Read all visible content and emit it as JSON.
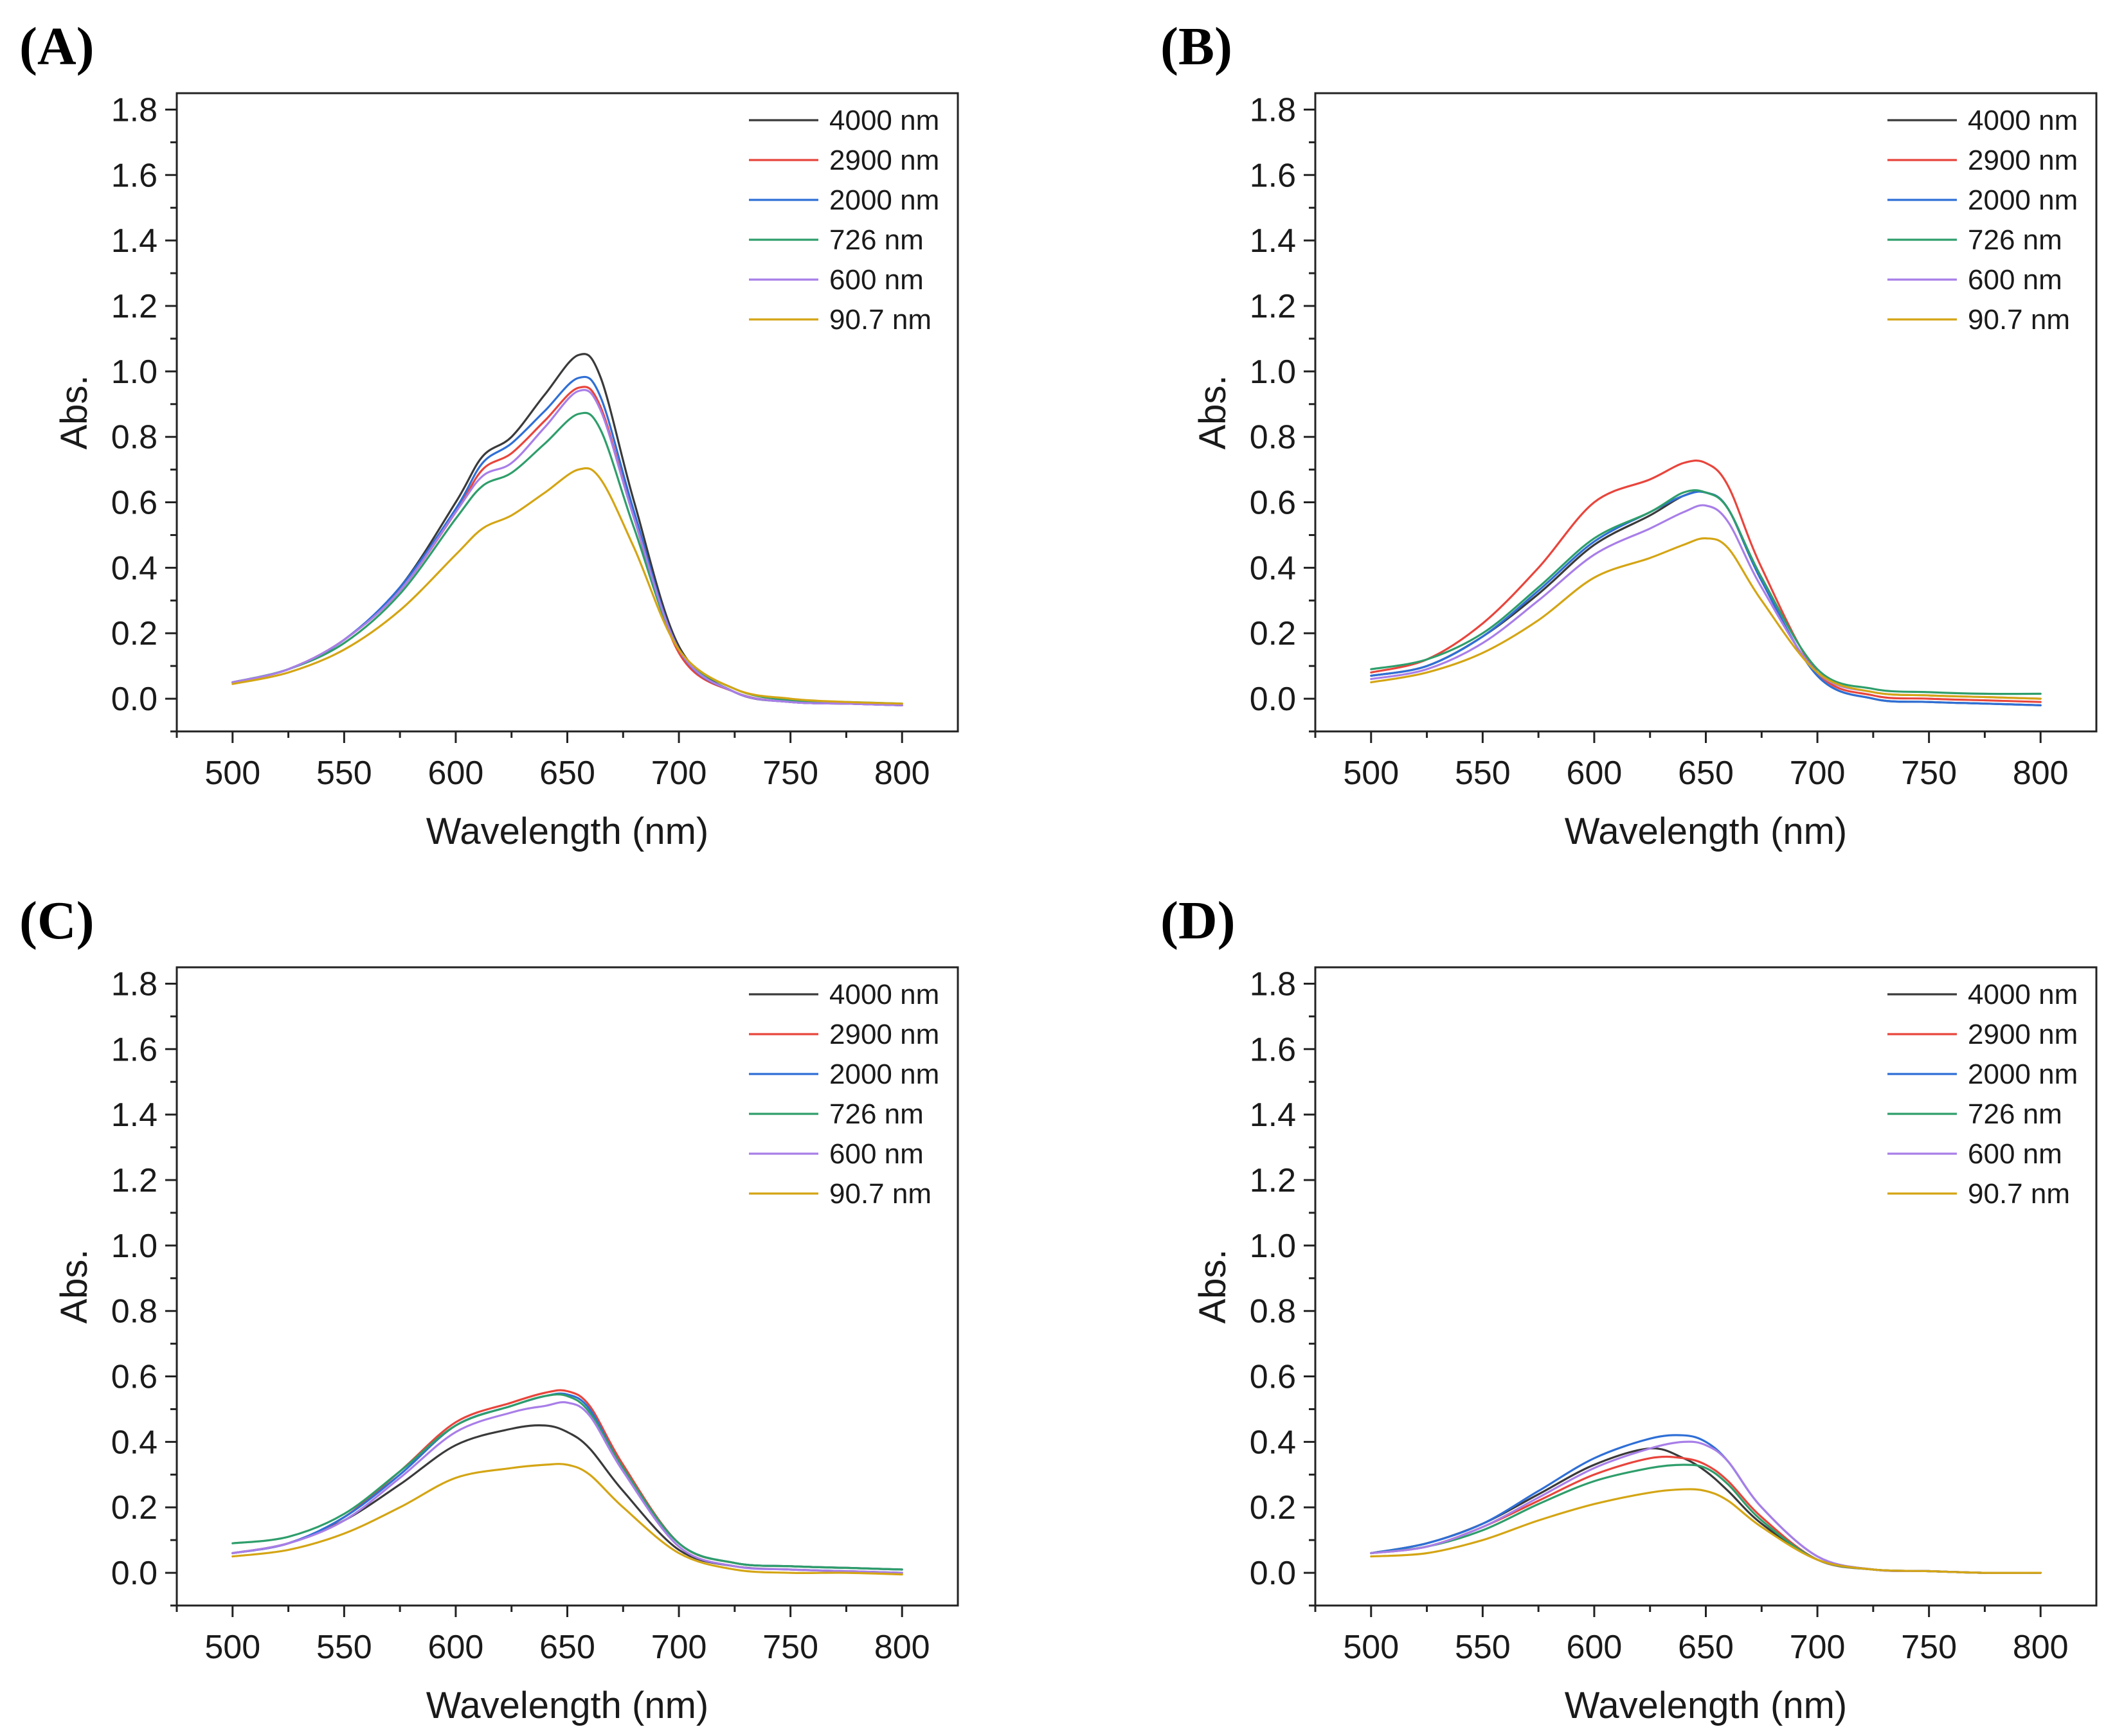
{
  "chart_data": [
    {
      "type": "line",
      "panel_label": "(A)",
      "xlabel": "Wavelength (nm)",
      "ylabel": "Abs.",
      "xlim": [
        475,
        825
      ],
      "ylim": [
        -0.1,
        1.85
      ],
      "x_ticks": [
        "500",
        "550",
        "600",
        "650",
        "700",
        "750",
        "800"
      ],
      "y_ticks": [
        "0.0",
        "0.2",
        "0.4",
        "0.6",
        "0.8",
        "1.0",
        "1.2",
        "1.4",
        "1.6",
        "1.8"
      ],
      "legend_position": "top-right",
      "x": [
        500,
        525,
        550,
        575,
        600,
        612,
        625,
        640,
        655,
        665,
        680,
        700,
        725,
        750,
        775,
        800
      ],
      "series": [
        {
          "name": "4000 nm",
          "color": "#3a3a3a",
          "values": [
            0.05,
            0.09,
            0.18,
            0.34,
            0.6,
            0.74,
            0.8,
            0.93,
            1.05,
            0.98,
            0.6,
            0.16,
            0.02,
            -0.01,
            -0.015,
            -0.02
          ]
        },
        {
          "name": "2900 nm",
          "color": "#e8453c",
          "values": [
            0.05,
            0.09,
            0.18,
            0.33,
            0.57,
            0.7,
            0.75,
            0.85,
            0.95,
            0.89,
            0.55,
            0.14,
            0.02,
            -0.01,
            -0.015,
            -0.02
          ]
        },
        {
          "name": "2000 nm",
          "color": "#2f6fd6",
          "values": [
            0.05,
            0.09,
            0.18,
            0.34,
            0.58,
            0.72,
            0.78,
            0.88,
            0.98,
            0.92,
            0.57,
            0.15,
            0.02,
            -0.01,
            -0.015,
            -0.02
          ]
        },
        {
          "name": "726 nm",
          "color": "#2e9e6b",
          "values": [
            0.05,
            0.09,
            0.17,
            0.32,
            0.55,
            0.65,
            0.69,
            0.78,
            0.87,
            0.82,
            0.52,
            0.15,
            0.03,
            -0.005,
            -0.01,
            -0.015
          ]
        },
        {
          "name": "600 nm",
          "color": "#a87ee8",
          "values": [
            0.05,
            0.09,
            0.18,
            0.33,
            0.57,
            0.68,
            0.72,
            0.83,
            0.94,
            0.88,
            0.55,
            0.15,
            0.02,
            -0.01,
            -0.015,
            -0.02
          ]
        },
        {
          "name": "90.7 nm",
          "color": "#d4a514",
          "values": [
            0.045,
            0.08,
            0.15,
            0.27,
            0.44,
            0.52,
            0.56,
            0.63,
            0.7,
            0.67,
            0.46,
            0.15,
            0.03,
            0.0,
            -0.01,
            -0.015
          ]
        }
      ]
    },
    {
      "type": "line",
      "panel_label": "(B)",
      "xlabel": "Wavelength (nm)",
      "ylabel": "Abs.",
      "xlim": [
        475,
        825
      ],
      "ylim": [
        -0.1,
        1.85
      ],
      "x_ticks": [
        "500",
        "550",
        "600",
        "650",
        "700",
        "750",
        "800"
      ],
      "y_ticks": [
        "0.0",
        "0.2",
        "0.4",
        "0.6",
        "0.8",
        "1.0",
        "1.2",
        "1.4",
        "1.6",
        "1.8"
      ],
      "legend_position": "top-right",
      "x": [
        500,
        525,
        550,
        575,
        600,
        625,
        640,
        650,
        660,
        675,
        700,
        725,
        750,
        775,
        800
      ],
      "series": [
        {
          "name": "4000 nm",
          "color": "#3a3a3a",
          "values": [
            0.07,
            0.1,
            0.19,
            0.32,
            0.47,
            0.56,
            0.62,
            0.63,
            0.58,
            0.36,
            0.07,
            0.0,
            -0.01,
            -0.015,
            -0.02
          ]
        },
        {
          "name": "2900 nm",
          "color": "#e8453c",
          "values": [
            0.08,
            0.12,
            0.23,
            0.4,
            0.6,
            0.67,
            0.72,
            0.72,
            0.65,
            0.4,
            0.08,
            0.01,
            0.0,
            -0.005,
            -0.01
          ]
        },
        {
          "name": "2000 nm",
          "color": "#2f6fd6",
          "values": [
            0.07,
            0.1,
            0.19,
            0.33,
            0.48,
            0.57,
            0.62,
            0.63,
            0.58,
            0.36,
            0.07,
            0.0,
            -0.01,
            -0.015,
            -0.02
          ]
        },
        {
          "name": "726 nm",
          "color": "#2e9e6b",
          "values": [
            0.09,
            0.12,
            0.2,
            0.34,
            0.49,
            0.57,
            0.63,
            0.63,
            0.58,
            0.37,
            0.09,
            0.03,
            0.02,
            0.015,
            0.015
          ]
        },
        {
          "name": "600 nm",
          "color": "#a87ee8",
          "values": [
            0.06,
            0.09,
            0.17,
            0.3,
            0.44,
            0.52,
            0.57,
            0.59,
            0.54,
            0.34,
            0.08,
            0.02,
            0.01,
            0.005,
            0.0
          ]
        },
        {
          "name": "90.7 nm",
          "color": "#d4a514",
          "values": [
            0.05,
            0.08,
            0.14,
            0.24,
            0.37,
            0.43,
            0.47,
            0.49,
            0.46,
            0.3,
            0.08,
            0.02,
            0.01,
            0.005,
            0.0
          ]
        }
      ]
    },
    {
      "type": "line",
      "panel_label": "(C)",
      "xlabel": "Wavelength (nm)",
      "ylabel": "Abs.",
      "xlim": [
        475,
        825
      ],
      "ylim": [
        -0.1,
        1.85
      ],
      "x_ticks": [
        "500",
        "550",
        "600",
        "650",
        "700",
        "750",
        "800"
      ],
      "y_ticks": [
        "0.0",
        "0.2",
        "0.4",
        "0.6",
        "0.8",
        "1.0",
        "1.2",
        "1.4",
        "1.6",
        "1.8"
      ],
      "legend_position": "top-right",
      "x": [
        500,
        525,
        550,
        575,
        600,
        625,
        640,
        650,
        660,
        675,
        700,
        725,
        750,
        775,
        800
      ],
      "series": [
        {
          "name": "4000 nm",
          "color": "#3a3a3a",
          "values": [
            0.06,
            0.09,
            0.16,
            0.27,
            0.39,
            0.44,
            0.45,
            0.43,
            0.38,
            0.25,
            0.07,
            0.02,
            0.01,
            0.005,
            0.0
          ]
        },
        {
          "name": "2900 nm",
          "color": "#e8453c",
          "values": [
            0.06,
            0.09,
            0.17,
            0.31,
            0.46,
            0.52,
            0.55,
            0.555,
            0.51,
            0.33,
            0.09,
            0.03,
            0.02,
            0.015,
            0.01
          ]
        },
        {
          "name": "2000 nm",
          "color": "#2f6fd6",
          "values": [
            0.06,
            0.09,
            0.17,
            0.3,
            0.45,
            0.51,
            0.54,
            0.545,
            0.5,
            0.32,
            0.09,
            0.03,
            0.02,
            0.015,
            0.01
          ]
        },
        {
          "name": "726 nm",
          "color": "#2e9e6b",
          "values": [
            0.09,
            0.11,
            0.18,
            0.31,
            0.45,
            0.51,
            0.54,
            0.54,
            0.49,
            0.32,
            0.09,
            0.03,
            0.02,
            0.015,
            0.01
          ]
        },
        {
          "name": "600 nm",
          "color": "#a87ee8",
          "values": [
            0.06,
            0.09,
            0.16,
            0.29,
            0.43,
            0.49,
            0.51,
            0.52,
            0.48,
            0.31,
            0.08,
            0.02,
            0.01,
            0.005,
            0.0
          ]
        },
        {
          "name": "90.7 nm",
          "color": "#d4a514",
          "values": [
            0.05,
            0.07,
            0.12,
            0.2,
            0.29,
            0.32,
            0.33,
            0.33,
            0.3,
            0.2,
            0.06,
            0.01,
            0.0,
            0.0,
            -0.005
          ]
        }
      ]
    },
    {
      "type": "line",
      "panel_label": "(D)",
      "xlabel": "Wavelength (nm)",
      "ylabel": "Abs.",
      "xlim": [
        475,
        825
      ],
      "ylim": [
        -0.1,
        1.85
      ],
      "x_ticks": [
        "500",
        "550",
        "600",
        "650",
        "700",
        "750",
        "800"
      ],
      "y_ticks": [
        "0.0",
        "0.2",
        "0.4",
        "0.6",
        "0.8",
        "1.0",
        "1.2",
        "1.4",
        "1.6",
        "1.8"
      ],
      "legend_position": "top-right",
      "x": [
        500,
        525,
        550,
        575,
        600,
        625,
        640,
        650,
        660,
        675,
        700,
        725,
        750,
        775,
        800
      ],
      "series": [
        {
          "name": "4000 nm",
          "color": "#3a3a3a",
          "values": [
            0.06,
            0.09,
            0.15,
            0.24,
            0.33,
            0.38,
            0.35,
            0.31,
            0.25,
            0.15,
            0.04,
            0.01,
            0.005,
            0.0,
            0.0
          ]
        },
        {
          "name": "2900 nm",
          "color": "#e8453c",
          "values": [
            0.06,
            0.08,
            0.14,
            0.22,
            0.3,
            0.35,
            0.35,
            0.33,
            0.28,
            0.17,
            0.04,
            0.01,
            0.005,
            0.0,
            0.0
          ]
        },
        {
          "name": "2000 nm",
          "color": "#2f6fd6",
          "values": [
            0.06,
            0.09,
            0.15,
            0.25,
            0.35,
            0.41,
            0.42,
            0.4,
            0.34,
            0.2,
            0.05,
            0.01,
            0.005,
            0.0,
            0.0
          ]
        },
        {
          "name": "726 nm",
          "color": "#2e9e6b",
          "values": [
            0.06,
            0.08,
            0.13,
            0.21,
            0.28,
            0.32,
            0.33,
            0.32,
            0.27,
            0.16,
            0.04,
            0.01,
            0.005,
            0.0,
            0.0
          ]
        },
        {
          "name": "600 nm",
          "color": "#a87ee8",
          "values": [
            0.06,
            0.08,
            0.14,
            0.23,
            0.32,
            0.38,
            0.4,
            0.39,
            0.34,
            0.2,
            0.05,
            0.01,
            0.005,
            0.0,
            0.0
          ]
        },
        {
          "name": "90.7 nm",
          "color": "#d4a514",
          "values": [
            0.05,
            0.06,
            0.1,
            0.16,
            0.21,
            0.245,
            0.255,
            0.25,
            0.22,
            0.14,
            0.04,
            0.01,
            0.005,
            0.0,
            0.0
          ]
        }
      ]
    }
  ]
}
